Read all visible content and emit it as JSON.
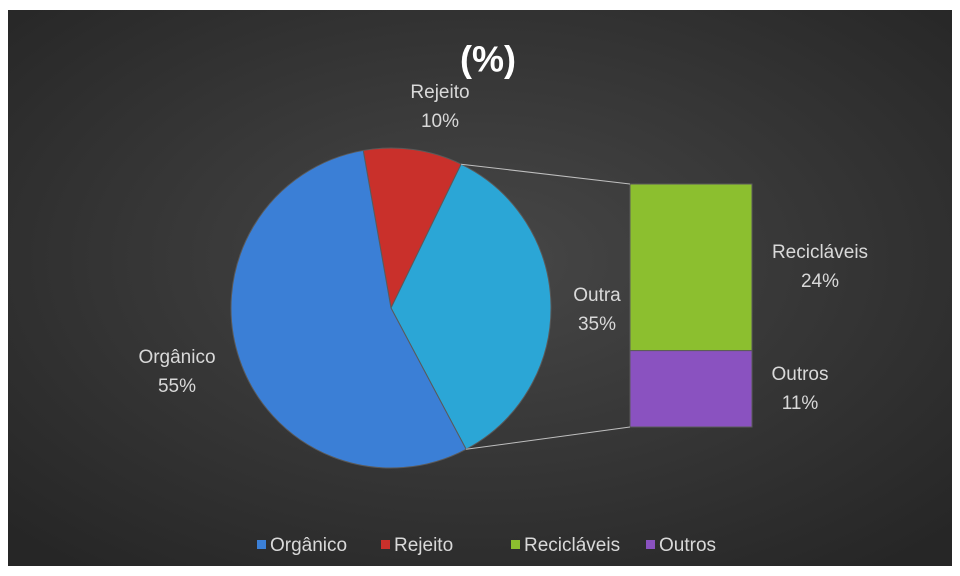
{
  "chart_data": {
    "type": "pie-of-bar",
    "title": "(%)",
    "categories": [
      "Orgânico",
      "Rejeito",
      "Outra"
    ],
    "values": [
      55,
      10,
      35
    ],
    "value_labels": [
      "55%",
      "10%",
      "35%"
    ],
    "colors": [
      "#3b7fd6",
      "#c9302b",
      "#2ba6d6"
    ],
    "breakdown": {
      "categories": [
        "Recicláveis",
        "Outros"
      ],
      "values": [
        24,
        11
      ],
      "value_labels": [
        "24%",
        "11%"
      ],
      "colors": [
        "#8cbf2f",
        "#8a52c0"
      ]
    },
    "legend": "bottom"
  }
}
